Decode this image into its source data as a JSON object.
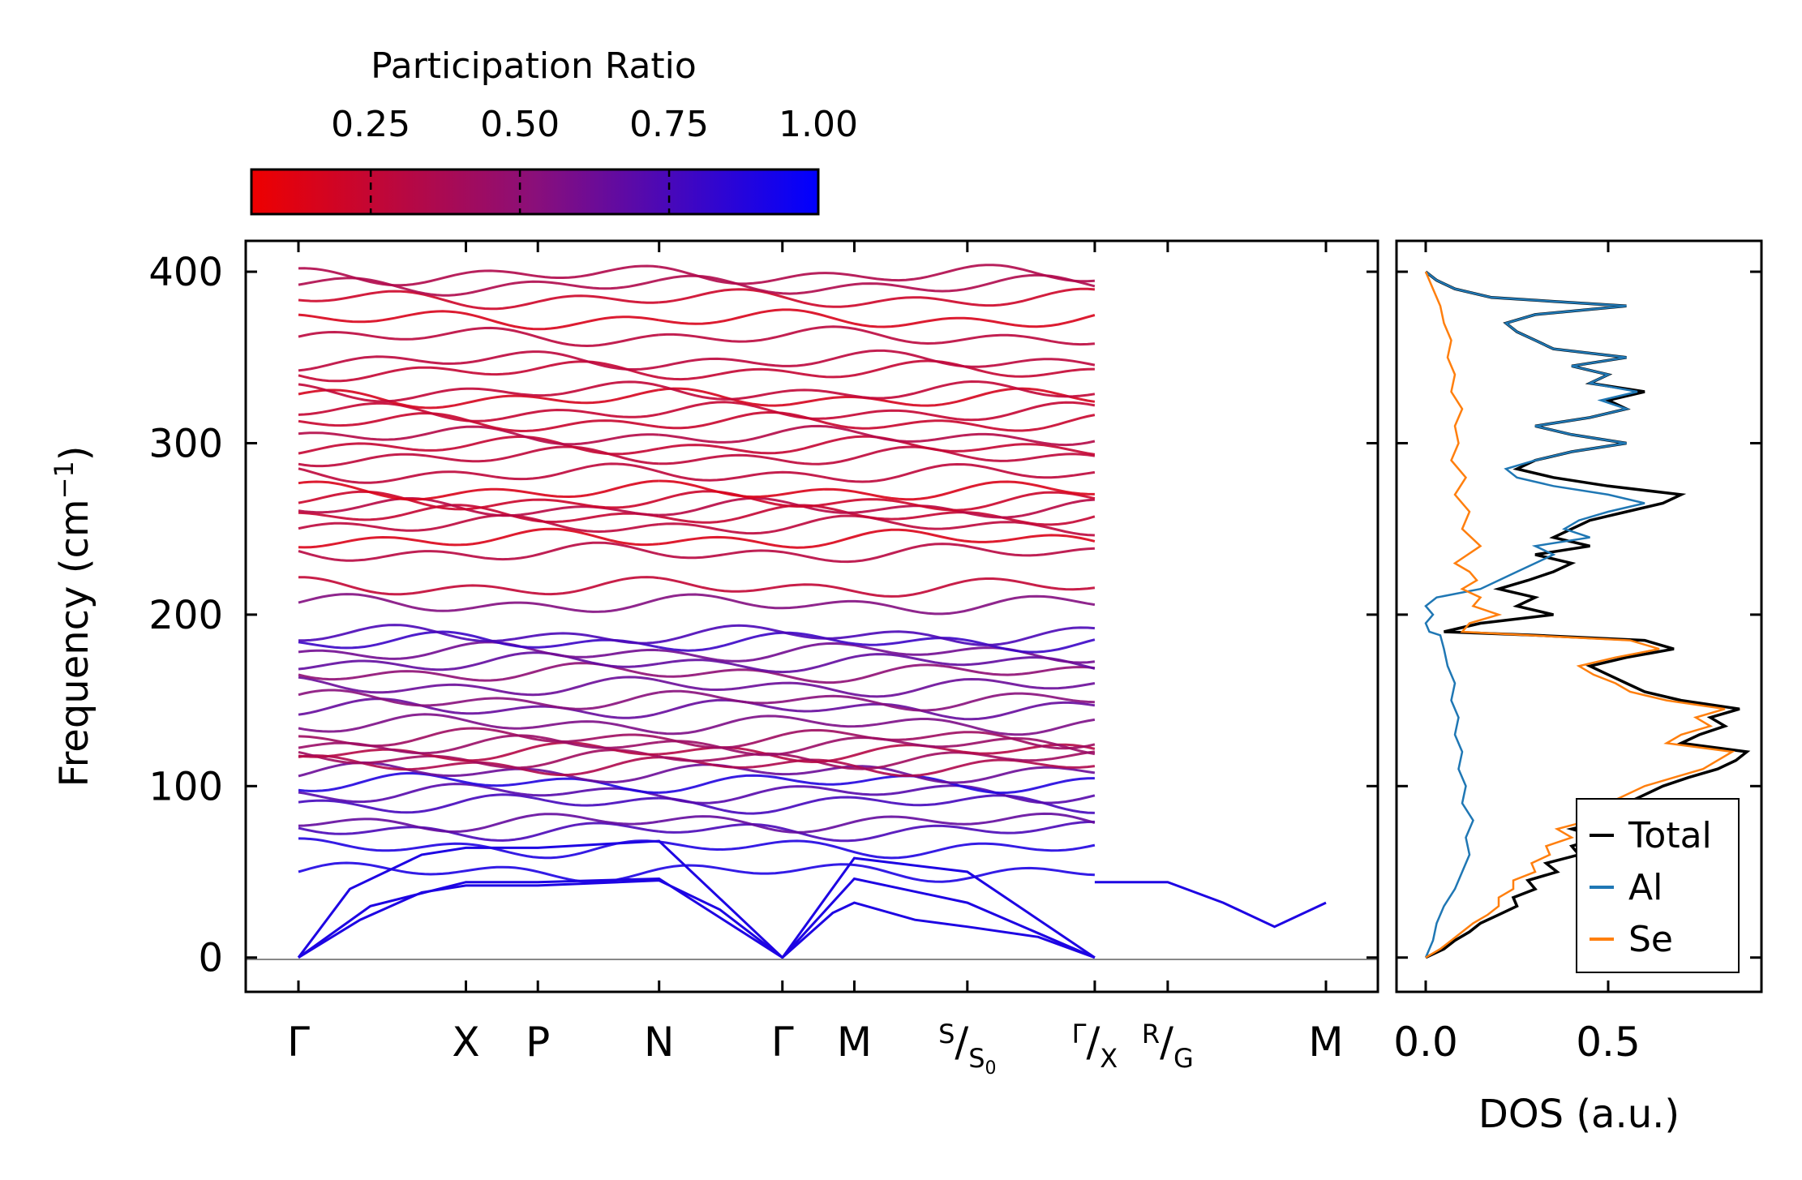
{
  "chart_data": [
    {
      "type": "line",
      "panel": "phonon-band-structure",
      "ylabel_main": "Frequency (cm",
      "ylabel_sup": "−1",
      "ylabel_close": ")",
      "ylim": [
        -20,
        418
      ],
      "yticks": [
        0,
        100,
        200,
        300,
        400
      ],
      "ytick_labels": [
        "0",
        "100",
        "200",
        "300",
        "400"
      ],
      "segments": [
        {
          "from": 0,
          "to": 3,
          "end_fraction": 0.7065
        },
        {
          "from": 3,
          "to": 7,
          "end_fraction": 1.0
        }
      ],
      "kpoints": [
        {
          "name": "gamma-1",
          "label": "Γ",
          "pos": 0.0
        },
        {
          "name": "x",
          "label": "X",
          "pos": 0.163
        },
        {
          "name": "p",
          "label": "P",
          "pos": 0.233
        },
        {
          "name": "n",
          "label": "N",
          "pos": 0.351
        },
        {
          "name": "gamma-2",
          "label": "Γ",
          "pos": 0.471
        },
        {
          "name": "m-1",
          "label": "M",
          "pos": 0.541
        },
        {
          "name": "s-s0",
          "label_a": "S",
          "label_b": "S",
          "label_sub": "0",
          "pos": 0.651
        },
        {
          "name": "gamma-x",
          "label_a": "Γ",
          "label_b": "X",
          "pos": 0.775
        },
        {
          "name": "r-g",
          "label_a": "R",
          "label_b": "G",
          "pos": 0.846
        },
        {
          "name": "m-2",
          "label": "M",
          "pos": 1.0
        }
      ],
      "colorbar": {
        "title": "Participation Ratio",
        "ticks": [
          0.25,
          0.5,
          0.75,
          1.0
        ],
        "tick_labels": [
          "0.25",
          "0.50",
          "0.75",
          "1.00"
        ],
        "range": [
          0.05,
          1.0
        ],
        "color_low": "#ee0000",
        "color_mid": "#8a0f7a",
        "color_high": "#0000ff"
      },
      "acoustic_branches": [
        {
          "name": "acoustic-1",
          "values": [
            [
              0,
              0
            ],
            [
              0.06,
              22
            ],
            [
              0.12,
              38
            ],
            [
              0.163,
              42
            ],
            [
              0.233,
              42
            ],
            [
              0.351,
              45
            ],
            [
              0.41,
              28
            ],
            [
              0.471,
              0
            ],
            [
              0.52,
              26
            ],
            [
              0.541,
              32
            ],
            [
              0.6,
              22
            ],
            [
              0.651,
              18
            ],
            [
              0.72,
              12
            ],
            [
              0.775,
              0
            ]
          ]
        },
        {
          "name": "acoustic-2",
          "values": [
            [
              0,
              0
            ],
            [
              0.07,
              30
            ],
            [
              0.163,
              44
            ],
            [
              0.233,
              44
            ],
            [
              0.351,
              46
            ],
            [
              0.471,
              0
            ],
            [
              0.541,
              46
            ],
            [
              0.651,
              32
            ],
            [
              0.775,
              0
            ]
          ]
        },
        {
          "name": "acoustic-3",
          "values": [
            [
              0,
              0
            ],
            [
              0.05,
              40
            ],
            [
              0.12,
              60
            ],
            [
              0.163,
              64
            ],
            [
              0.233,
              64
            ],
            [
              0.351,
              68
            ],
            [
              0.471,
              0
            ],
            [
              0.541,
              58
            ],
            [
              0.651,
              50
            ],
            [
              0.775,
              0
            ]
          ]
        },
        {
          "name": "acoustic-right",
          "values": [
            [
              0.775,
              44
            ],
            [
              0.846,
              44
            ],
            [
              0.9,
              32
            ],
            [
              0.95,
              18
            ],
            [
              1.0,
              32
            ]
          ]
        }
      ],
      "optical_levels": [
        50,
        64,
        74,
        79,
        90,
        96,
        102,
        108,
        112,
        116,
        120,
        124,
        128,
        136,
        145,
        150,
        158,
        166,
        172,
        178,
        184,
        188,
        206,
        216,
        236,
        244,
        252,
        258,
        262,
        266,
        272,
        282,
        292,
        298,
        304,
        312,
        318,
        326,
        330,
        342,
        348,
        362,
        372,
        384,
        392,
        398
      ],
      "participation_by_level_note": "low frequency blue, high frequency red",
      "levels_participation": [
        0.9,
        0.85,
        0.7,
        0.65,
        0.8,
        0.75,
        0.9,
        0.6,
        0.3,
        0.4,
        0.35,
        0.5,
        0.45,
        0.55,
        0.6,
        0.5,
        0.65,
        0.55,
        0.7,
        0.6,
        0.75,
        0.7,
        0.55,
        0.3,
        0.35,
        0.15,
        0.25,
        0.2,
        0.3,
        0.25,
        0.2,
        0.3,
        0.25,
        0.2,
        0.3,
        0.25,
        0.3,
        0.2,
        0.25,
        0.2,
        0.25,
        0.3,
        0.2,
        0.25,
        0.35,
        0.3
      ]
    },
    {
      "type": "line",
      "panel": "density-of-states",
      "xlabel": "DOS (a.u.)",
      "xlim": [
        -0.08,
        0.92
      ],
      "xticks": [
        0.0,
        0.5
      ],
      "xtick_labels": [
        "0.0",
        "0.5"
      ],
      "legend": "lower right",
      "series": [
        {
          "name": "Total",
          "color": "#000000",
          "y": [
            0,
            5,
            10,
            15,
            20,
            25,
            30,
            35,
            40,
            45,
            50,
            55,
            60,
            65,
            70,
            75,
            80,
            85,
            90,
            95,
            100,
            105,
            110,
            115,
            120,
            125,
            130,
            135,
            140,
            145,
            150,
            155,
            160,
            165,
            170,
            175,
            180,
            185,
            188,
            190,
            195,
            200,
            205,
            210,
            215,
            220,
            225,
            230,
            235,
            240,
            245,
            250,
            255,
            260,
            265,
            270,
            275,
            280,
            285,
            290,
            295,
            300,
            305,
            310,
            315,
            320,
            325,
            330,
            335,
            340,
            345,
            350,
            355,
            360,
            365,
            370,
            375,
            380,
            385,
            390,
            395,
            400
          ],
          "x": [
            0.0,
            0.05,
            0.08,
            0.12,
            0.15,
            0.2,
            0.25,
            0.24,
            0.3,
            0.28,
            0.36,
            0.33,
            0.42,
            0.4,
            0.48,
            0.4,
            0.5,
            0.45,
            0.55,
            0.6,
            0.65,
            0.72,
            0.8,
            0.85,
            0.88,
            0.7,
            0.75,
            0.82,
            0.78,
            0.86,
            0.7,
            0.6,
            0.55,
            0.5,
            0.45,
            0.55,
            0.68,
            0.6,
            0.3,
            0.05,
            0.15,
            0.35,
            0.25,
            0.3,
            0.2,
            0.28,
            0.35,
            0.4,
            0.3,
            0.45,
            0.35,
            0.4,
            0.45,
            0.55,
            0.65,
            0.7,
            0.5,
            0.35,
            0.25,
            0.3,
            0.4,
            0.55,
            0.4,
            0.3,
            0.45,
            0.55,
            0.5,
            0.6,
            0.45,
            0.5,
            0.4,
            0.55,
            0.35,
            0.3,
            0.25,
            0.22,
            0.3,
            0.55,
            0.18,
            0.08,
            0.03,
            0.0
          ]
        },
        {
          "name": "Al",
          "color": "#1f77b4",
          "y": [
            0,
            10,
            20,
            30,
            40,
            50,
            60,
            70,
            80,
            90,
            100,
            110,
            120,
            130,
            140,
            150,
            160,
            170,
            180,
            188,
            190,
            195,
            200,
            205,
            210,
            215,
            220,
            225,
            230,
            235,
            240,
            245,
            250,
            255,
            260,
            265,
            270,
            275,
            280,
            285,
            290,
            295,
            300,
            305,
            310,
            315,
            320,
            325,
            330,
            335,
            340,
            345,
            350,
            355,
            360,
            365,
            370,
            375,
            380,
            385,
            390,
            395,
            400
          ],
          "x": [
            0.0,
            0.02,
            0.03,
            0.05,
            0.08,
            0.1,
            0.12,
            0.11,
            0.13,
            0.1,
            0.11,
            0.09,
            0.1,
            0.08,
            0.09,
            0.07,
            0.08,
            0.06,
            0.05,
            0.04,
            0.01,
            0.0,
            0.02,
            0.0,
            0.03,
            0.15,
            0.2,
            0.25,
            0.3,
            0.35,
            0.3,
            0.45,
            0.38,
            0.42,
            0.5,
            0.6,
            0.5,
            0.35,
            0.25,
            0.22,
            0.3,
            0.4,
            0.55,
            0.4,
            0.3,
            0.45,
            0.55,
            0.48,
            0.58,
            0.45,
            0.5,
            0.4,
            0.55,
            0.35,
            0.3,
            0.25,
            0.22,
            0.3,
            0.55,
            0.18,
            0.08,
            0.03,
            0.0
          ]
        },
        {
          "name": "Se",
          "color": "#ff7f0e",
          "y": [
            0,
            5,
            10,
            15,
            20,
            25,
            30,
            35,
            40,
            45,
            50,
            55,
            60,
            65,
            70,
            75,
            80,
            85,
            90,
            95,
            100,
            105,
            110,
            115,
            120,
            125,
            130,
            135,
            140,
            145,
            150,
            155,
            160,
            165,
            170,
            175,
            180,
            185,
            188,
            190,
            195,
            200,
            205,
            210,
            215,
            220,
            225,
            230,
            240,
            250,
            260,
            270,
            280,
            290,
            300,
            310,
            320,
            330,
            340,
            350,
            360,
            370,
            380,
            390,
            400
          ],
          "x": [
            0.0,
            0.04,
            0.07,
            0.1,
            0.13,
            0.17,
            0.2,
            0.2,
            0.24,
            0.24,
            0.3,
            0.29,
            0.34,
            0.33,
            0.4,
            0.36,
            0.45,
            0.42,
            0.5,
            0.55,
            0.6,
            0.68,
            0.76,
            0.8,
            0.84,
            0.66,
            0.7,
            0.78,
            0.74,
            0.82,
            0.66,
            0.56,
            0.52,
            0.46,
            0.42,
            0.52,
            0.64,
            0.56,
            0.28,
            0.1,
            0.12,
            0.2,
            0.13,
            0.15,
            0.1,
            0.14,
            0.12,
            0.08,
            0.15,
            0.1,
            0.12,
            0.08,
            0.11,
            0.07,
            0.09,
            0.08,
            0.1,
            0.07,
            0.08,
            0.06,
            0.07,
            0.05,
            0.04,
            0.02,
            0.0
          ]
        }
      ]
    }
  ]
}
